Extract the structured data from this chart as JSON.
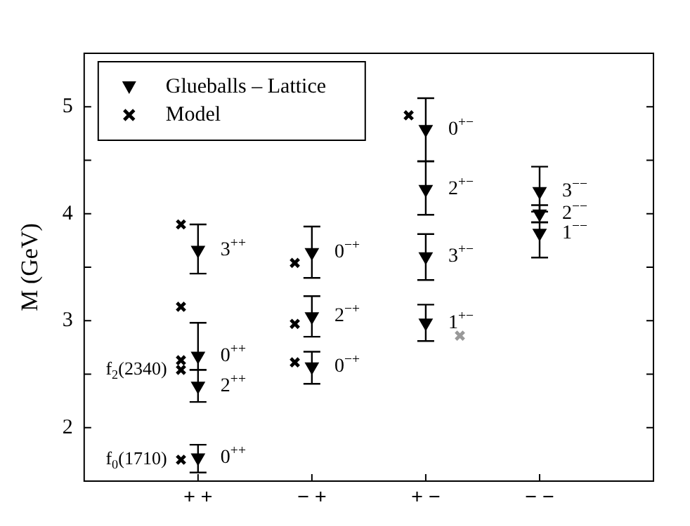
{
  "chart_data": {
    "type": "scatter",
    "ylabel": "M (GeV)",
    "categories": [
      "+ +",
      "− +",
      "+ −",
      "− −"
    ],
    "ylim": [
      1.5,
      5.5
    ],
    "yticks": [
      2,
      {
        "value": 2.5,
        "label": null
      },
      3,
      {
        "value": 3.5,
        "label": null
      },
      4,
      {
        "value": 4.5,
        "label": null
      },
      5
    ],
    "legend": "top left",
    "grid": false,
    "series": [
      {
        "name": "Glueballs – Lattice",
        "color": "#000000",
        "marker": "triangle",
        "x": [
          "+ +",
          "+ +",
          "+ +",
          "+ +",
          "− +",
          "− +",
          "− +",
          "+ −",
          "+ −",
          "+ −",
          "+ −",
          "− −",
          "− −",
          "− −"
        ],
        "values": [
          1.72,
          2.39,
          2.67,
          3.66,
          2.57,
          3.04,
          3.64,
          2.98,
          3.6,
          4.23,
          4.79,
          3.82,
          4.0,
          4.21
        ],
        "errors": [
          [
            1.58,
            1.84
          ],
          [
            2.24,
            2.54
          ],
          [
            2.54,
            2.98
          ],
          [
            3.44,
            3.9
          ],
          [
            2.41,
            2.71
          ],
          [
            2.85,
            3.23
          ],
          [
            3.4,
            3.88
          ],
          [
            2.81,
            3.15
          ],
          [
            3.38,
            3.81
          ],
          [
            3.99,
            4.49
          ],
          [
            4.49,
            5.08
          ],
          [
            3.59,
            3.92
          ],
          [
            3.92,
            4.08
          ],
          [
            4.02,
            4.44
          ]
        ]
      },
      {
        "name": "Model",
        "color": "#000000",
        "marker": "cross",
        "x": [
          "+ +",
          "+ +",
          "+ +",
          "+ +",
          "+ +",
          "− +",
          "− +",
          "− +",
          "+ −"
        ],
        "values": [
          1.7,
          2.54,
          2.63,
          3.13,
          3.9,
          2.61,
          2.97,
          3.54,
          4.92
        ]
      },
      {
        "color": "#999999",
        "marker": "cross",
        "x": [
          "+ −"
        ],
        "values": [
          2.86
        ]
      }
    ],
    "annotations": [
      {
        "text": "0$^{++}$",
        "x": "+ +",
        "y": 1.72
      },
      {
        "text": "2$^{++}$",
        "x": "+ +",
        "y": 2.39
      },
      {
        "text": "0$^{++}$",
        "x": "+ +",
        "y": 2.67
      },
      {
        "text": "3$^{++}$",
        "x": "+ +",
        "y": 3.66
      },
      {
        "text": "0$^{−+}$",
        "x": "− +",
        "y": 2.57
      },
      {
        "text": "2$^{−+}$",
        "x": "− +",
        "y": 3.04
      },
      {
        "text": "0$^{−+}$",
        "x": "− +",
        "y": 3.64
      },
      {
        "text": "1$^{+−}$",
        "x": "+ −",
        "y": 2.98
      },
      {
        "text": "3$^{+−}$",
        "x": "+ −",
        "y": 3.6
      },
      {
        "text": "2$^{+−}$",
        "x": "+ −",
        "y": 4.23
      },
      {
        "text": "0$^{+−}$",
        "x": "+ −",
        "y": 4.79
      },
      {
        "text": "1$^{−−}$",
        "x": "− −",
        "y": 3.82
      },
      {
        "text": "2$^{−−}$",
        "x": "− −",
        "y": 4.0
      },
      {
        "text": "3$^{−−}$",
        "x": "− −",
        "y": 4.21
      },
      {
        "text": "f$_{0}$(1710)",
        "x": "+ +",
        "y": 1.7
      },
      {
        "text": "f$_{2}$(2340)",
        "x": "+ +",
        "y": 2.54
      }
    ]
  }
}
